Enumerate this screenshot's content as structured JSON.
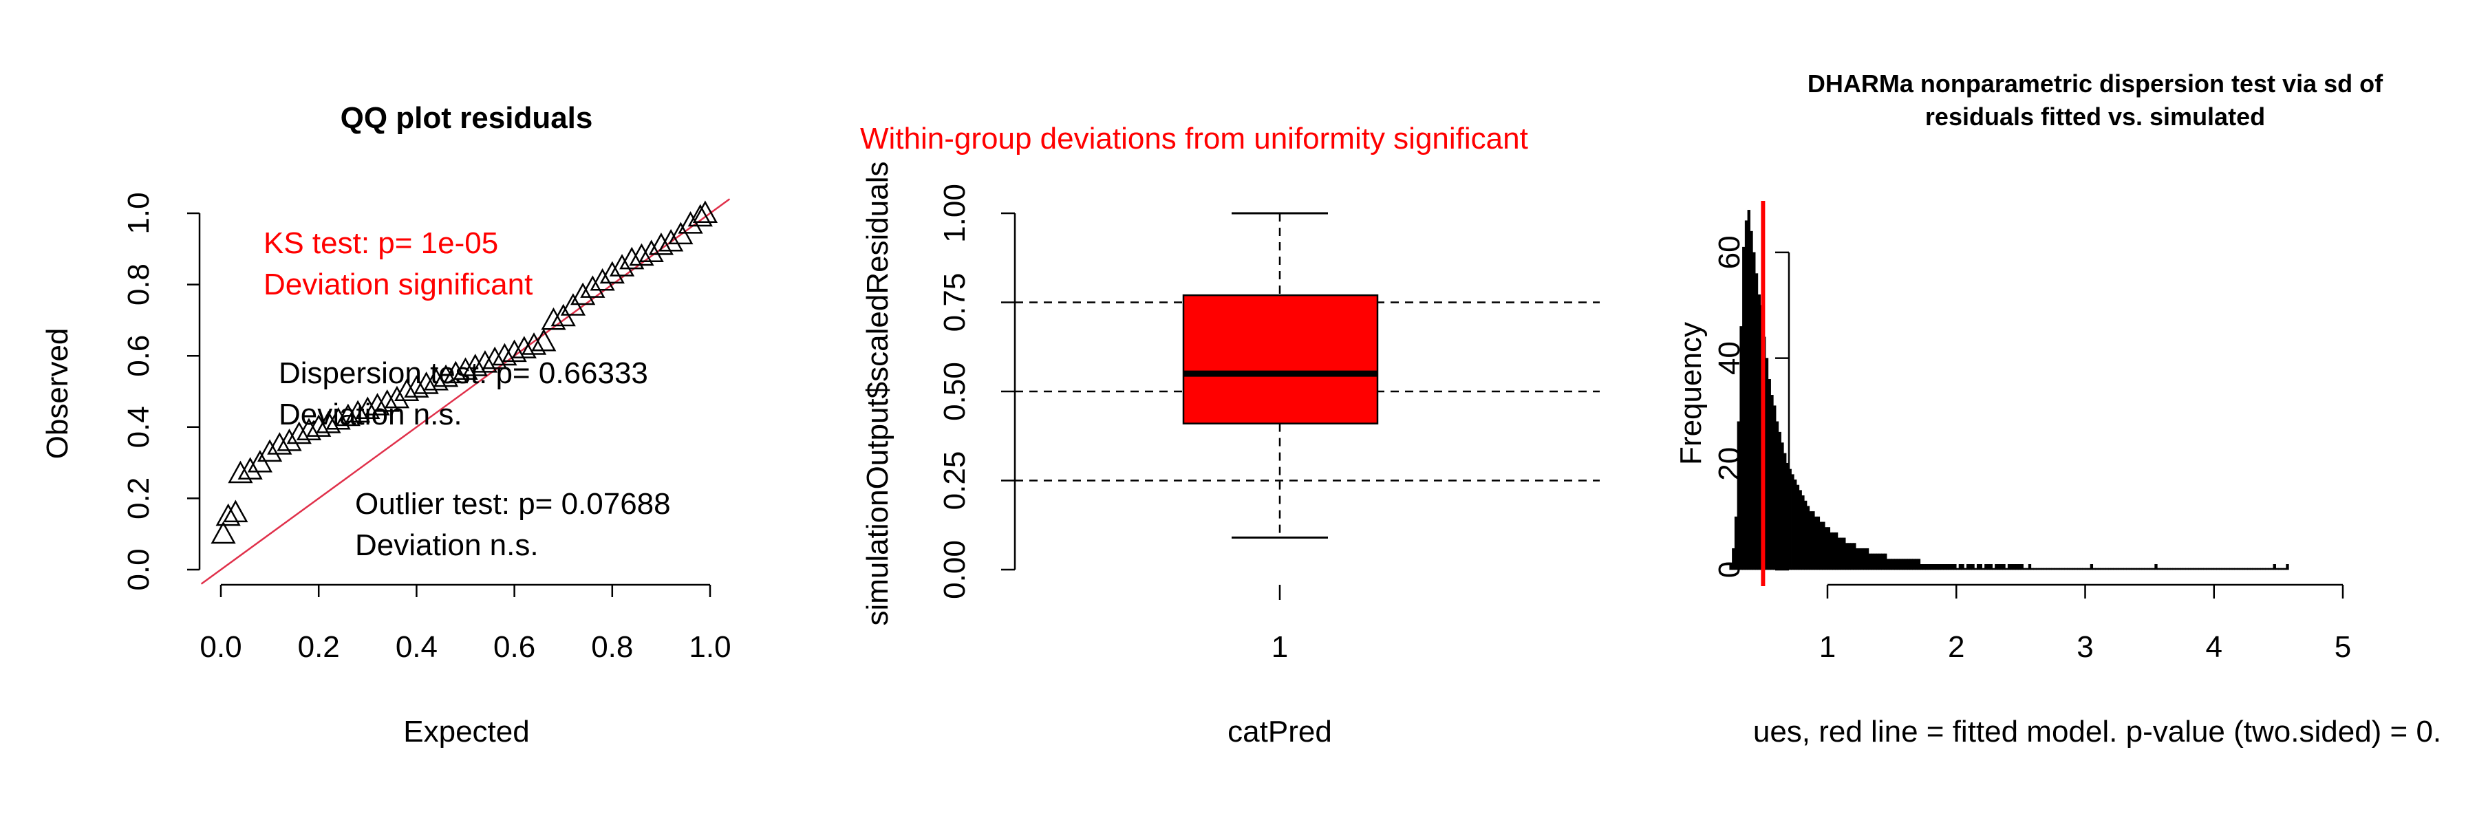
{
  "chart_data": [
    {
      "type": "scatter",
      "title": "QQ plot residuals",
      "xlabel": "Expected",
      "ylabel": "Observed",
      "xlim": [
        0,
        1
      ],
      "ylim": [
        0,
        1
      ],
      "x_ticks": [
        "0.0",
        "0.2",
        "0.4",
        "0.6",
        "0.8",
        "1.0"
      ],
      "y_ticks": [
        "0.0",
        "0.2",
        "0.4",
        "0.6",
        "0.8",
        "1.0"
      ],
      "reference_line": "y = x",
      "colors": {
        "reference_line": "#e0304a",
        "points": "#000000",
        "test_text": "#ff0000"
      },
      "annotations": {
        "ks_test": "KS test: p= 1e-05",
        "ks_deviation": "Deviation  significant",
        "dispersion_test": "Dispersion test: p= 0.66333",
        "dispersion_deviation": "Deviation  n.s.",
        "outlier_test": "Outlier test: p= 0.07688",
        "outlier_deviation": "Deviation  n.s."
      },
      "points": [
        {
          "x": 0.005,
          "y": 0.1
        },
        {
          "x": 0.015,
          "y": 0.15
        },
        {
          "x": 0.03,
          "y": 0.16
        },
        {
          "x": 0.04,
          "y": 0.27
        },
        {
          "x": 0.06,
          "y": 0.28
        },
        {
          "x": 0.08,
          "y": 0.3
        },
        {
          "x": 0.1,
          "y": 0.33
        },
        {
          "x": 0.12,
          "y": 0.35
        },
        {
          "x": 0.14,
          "y": 0.36
        },
        {
          "x": 0.16,
          "y": 0.38
        },
        {
          "x": 0.18,
          "y": 0.39
        },
        {
          "x": 0.2,
          "y": 0.4
        },
        {
          "x": 0.22,
          "y": 0.41
        },
        {
          "x": 0.24,
          "y": 0.42
        },
        {
          "x": 0.26,
          "y": 0.43
        },
        {
          "x": 0.28,
          "y": 0.44
        },
        {
          "x": 0.3,
          "y": 0.45
        },
        {
          "x": 0.32,
          "y": 0.46
        },
        {
          "x": 0.34,
          "y": 0.47
        },
        {
          "x": 0.36,
          "y": 0.48
        },
        {
          "x": 0.38,
          "y": 0.5
        },
        {
          "x": 0.4,
          "y": 0.51
        },
        {
          "x": 0.42,
          "y": 0.52
        },
        {
          "x": 0.44,
          "y": 0.53
        },
        {
          "x": 0.46,
          "y": 0.54
        },
        {
          "x": 0.48,
          "y": 0.55
        },
        {
          "x": 0.5,
          "y": 0.56
        },
        {
          "x": 0.52,
          "y": 0.57
        },
        {
          "x": 0.54,
          "y": 0.58
        },
        {
          "x": 0.56,
          "y": 0.59
        },
        {
          "x": 0.58,
          "y": 0.6
        },
        {
          "x": 0.6,
          "y": 0.61
        },
        {
          "x": 0.62,
          "y": 0.62
        },
        {
          "x": 0.64,
          "y": 0.63
        },
        {
          "x": 0.66,
          "y": 0.64
        },
        {
          "x": 0.68,
          "y": 0.7
        },
        {
          "x": 0.7,
          "y": 0.71
        },
        {
          "x": 0.72,
          "y": 0.74
        },
        {
          "x": 0.74,
          "y": 0.77
        },
        {
          "x": 0.76,
          "y": 0.79
        },
        {
          "x": 0.78,
          "y": 0.81
        },
        {
          "x": 0.8,
          "y": 0.83
        },
        {
          "x": 0.82,
          "y": 0.85
        },
        {
          "x": 0.84,
          "y": 0.87
        },
        {
          "x": 0.86,
          "y": 0.88
        },
        {
          "x": 0.88,
          "y": 0.89
        },
        {
          "x": 0.9,
          "y": 0.91
        },
        {
          "x": 0.92,
          "y": 0.92
        },
        {
          "x": 0.94,
          "y": 0.94
        },
        {
          "x": 0.96,
          "y": 0.97
        },
        {
          "x": 0.98,
          "y": 0.99
        },
        {
          "x": 0.99,
          "y": 1.0
        }
      ]
    },
    {
      "type": "box",
      "title": "Within-group deviations from uniformity significant",
      "xlabel": "catPred",
      "ylabel": "simulationOutput$scaledResiduals",
      "ylim": [
        0,
        1
      ],
      "y_ticks": [
        "0.00",
        "0.25",
        "0.50",
        "0.75",
        "1.00"
      ],
      "categories": [
        "1"
      ],
      "reference_lines": [
        0.25,
        0.5,
        0.75
      ],
      "box": {
        "min": 0.09,
        "q1": 0.41,
        "median": 0.55,
        "q3": 0.77,
        "max": 1.0
      },
      "colors": {
        "box_fill": "#ff0000",
        "title": "#ff0000"
      }
    },
    {
      "type": "histogram",
      "title": "DHARMa nonparametric dispersion test via sd of residuals fitted vs. simulated",
      "title_lines": [
        "DHARMa nonparametric dispersion test via sd of",
        "residuals fitted vs. simulated"
      ],
      "xlabel": "ues, red line = fitted model. p-value (two.sided) = 0.",
      "ylabel": "Frequency",
      "xlim": [
        0,
        5
      ],
      "ylim": [
        0,
        70
      ],
      "x_ticks": [
        "1",
        "2",
        "3",
        "4",
        "5"
      ],
      "y_ticks": [
        "0",
        "20",
        "40",
        "60"
      ],
      "fitted_value": 0.5,
      "bin_width": 0.02,
      "bins_start": 0.24,
      "counts": [
        1,
        4,
        10,
        28,
        46,
        61,
        66,
        68,
        64,
        60,
        56,
        52,
        50,
        44,
        40,
        36,
        33,
        31,
        28,
        26,
        24,
        22,
        20,
        19,
        18,
        17,
        16,
        15,
        14,
        13,
        12,
        11,
        11,
        10,
        10,
        9,
        9,
        8,
        8,
        7,
        7,
        7,
        6,
        6,
        6,
        5,
        5,
        5,
        5,
        4,
        4,
        4,
        4,
        4,
        3,
        3,
        3,
        3,
        3,
        3,
        3,
        2,
        2,
        2,
        2,
        2,
        2,
        2,
        2,
        2,
        2,
        2,
        2,
        2,
        1,
        1,
        1,
        1,
        1,
        1,
        1,
        1,
        1,
        1,
        1,
        1,
        1,
        1,
        0,
        1,
        1,
        0,
        1,
        1,
        1,
        0,
        1,
        1,
        0,
        1,
        1,
        1,
        0,
        1,
        1,
        1,
        1,
        0,
        1,
        1,
        1,
        1,
        1,
        1,
        0,
        0,
        1,
        0,
        0,
        0,
        0,
        0,
        0,
        0,
        0,
        0,
        0,
        0,
        0,
        0,
        0,
        0,
        0,
        0,
        0,
        0,
        0,
        0,
        0,
        0,
        1,
        0,
        0,
        0,
        0,
        0,
        0,
        0,
        0,
        0,
        0,
        0,
        0,
        0,
        0,
        0,
        0,
        0,
        0,
        0,
        0,
        0,
        0,
        0,
        0,
        1,
        0,
        0,
        0,
        0,
        0,
        0,
        0,
        0,
        0,
        0,
        0,
        0,
        0,
        0,
        0,
        0,
        0,
        0,
        0,
        0,
        0,
        0,
        0,
        0,
        0,
        0,
        0,
        0,
        0,
        0,
        0,
        0,
        0,
        0,
        0,
        0,
        0,
        0,
        0,
        0,
        0,
        0,
        0,
        0,
        0,
        1,
        0,
        0,
        0,
        0,
        1
      ],
      "colors": {
        "bars": "#000000",
        "fitted_line": "#ff0000"
      }
    }
  ]
}
